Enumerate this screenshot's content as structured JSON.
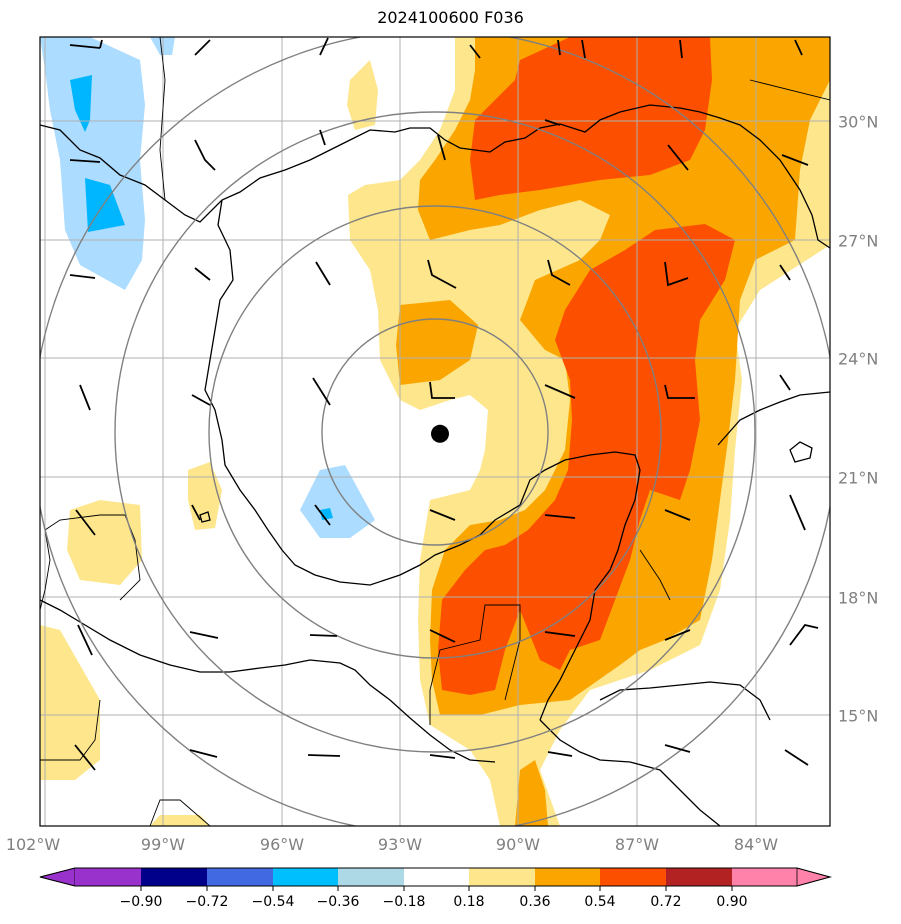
{
  "title": "2024100600 F036",
  "colors": {
    "lightyellow": "#fde68c",
    "orange": "#fba600",
    "redorange": "#fd4f00",
    "lightblue": "#acdcff",
    "cyan": "#00b7ff"
  },
  "lon_labels": [
    "102°W",
    "99°W",
    "96°W",
    "93°W",
    "90°W",
    "87°W",
    "84°W"
  ],
  "lat_labels": [
    "30°N",
    "27°N",
    "24°N",
    "21°N",
    "18°N",
    "15°N"
  ],
  "colorbar": {
    "ticks": [
      "−0.90",
      "−0.72",
      "−0.54",
      "−0.36",
      "−0.18",
      "0.18",
      "0.36",
      "0.54",
      "0.72",
      "0.90"
    ],
    "colors": [
      "#9932cc",
      "#00008b",
      "#4169e1",
      "#00bfff",
      "#add8e6",
      "#ffffff",
      "#fde68c",
      "#fba600",
      "#fd4f00",
      "#b22222",
      "#ff82ab"
    ]
  },
  "storm_center": {
    "lon": -92.0,
    "lat": 22.1
  }
}
